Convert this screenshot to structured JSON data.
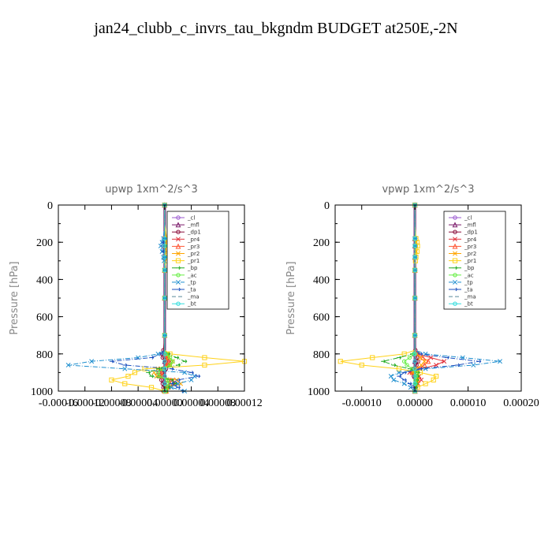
{
  "figure": {
    "title": "jan24_clubb_c_invrs_tau_bkgndm  BUDGET at250E,-2N"
  },
  "legend_entries": [
    {
      "label": "_cl",
      "color": "#9b59d0",
      "marker": "circle",
      "dash": "solid"
    },
    {
      "label": "_mfl",
      "color": "#7b1b6a",
      "marker": "triangle",
      "dash": "solid"
    },
    {
      "label": "_dp1",
      "color": "#8b0f3c",
      "marker": "circle",
      "dash": "solid"
    },
    {
      "label": "_pr4",
      "color": "#e0303a",
      "marker": "cross",
      "dash": "solid"
    },
    {
      "label": "_pr3",
      "color": "#ff5533",
      "marker": "triangle",
      "dash": "solid"
    },
    {
      "label": "_pr2",
      "color": "#ffa500",
      "marker": "cross",
      "dash": "solid"
    },
    {
      "label": "_pr1",
      "color": "#ffd21a",
      "marker": "square",
      "dash": "solid"
    },
    {
      "label": "_bp",
      "color": "#22aa22",
      "marker": "arrow",
      "dash": "dashdot"
    },
    {
      "label": "_ac",
      "color": "#66ee44",
      "marker": "circle",
      "dash": "solid"
    },
    {
      "label": "_tp",
      "color": "#1f8fcf",
      "marker": "cross",
      "dash": "dashdot"
    },
    {
      "label": "_ta",
      "color": "#1a4fbf",
      "marker": "arrow",
      "dash": "dashdot"
    },
    {
      "label": "_ma",
      "color": "#5a8a9a",
      "marker": "none",
      "dash": "dash"
    },
    {
      "label": "_bt",
      "color": "#33dddd",
      "marker": "circle",
      "dash": "solid"
    }
  ],
  "chart_data": [
    {
      "type": "line",
      "title": "upwp   1xm^2/s^3",
      "ylabel": "Pressure [hPa]",
      "xlabel": "",
      "xlim": [
        -0.00016,
        0.00012
      ],
      "ylim": [
        1000,
        0
      ],
      "y_ticks": [
        0,
        200,
        400,
        600,
        800,
        1000
      ],
      "y_tick_labels": [
        "0",
        "200",
        "400",
        "600",
        "800",
        "1000"
      ],
      "x_ticks": [
        -0.00016,
        -0.00012,
        -8e-05,
        -4e-05,
        0.0,
        4e-05,
        8e-05,
        0.00012
      ],
      "x_tick_labels": [
        "-0.00016",
        "-0.00012",
        "-0.00008",
        "-0.00004",
        "0.00000",
        "0.00004",
        "0.00008",
        "0.00012"
      ],
      "legend_position": "top-right",
      "y": [
        0,
        100,
        180,
        200,
        220,
        250,
        280,
        300,
        350,
        400,
        500,
        600,
        700,
        780,
        800,
        820,
        840,
        860,
        880,
        900,
        920,
        940,
        960,
        980,
        1000
      ],
      "series": [
        {
          "name": "_cl",
          "values": [
            0,
            0,
            0,
            0,
            0,
            0,
            0,
            0,
            0,
            0,
            0,
            0,
            0,
            0,
            0,
            0,
            0,
            0,
            0,
            0,
            0,
            0,
            0,
            0,
            0
          ]
        },
        {
          "name": "_mfl",
          "values": [
            0,
            0,
            0,
            0,
            0,
            0,
            0,
            0,
            0,
            0,
            0,
            0,
            0,
            0,
            0,
            0,
            0,
            0,
            0,
            0,
            0,
            0,
            0,
            0,
            0
          ]
        },
        {
          "name": "_dp1",
          "values": [
            0,
            0,
            0,
            0,
            0,
            0,
            0,
            0,
            0,
            0,
            0,
            0,
            0,
            -2e-06,
            -4e-06,
            -3e-06,
            2e-06,
            3e-06,
            2e-06,
            -4e-06,
            -7e-06,
            -5e-06,
            -3e-06,
            -2e-06,
            -2e-06
          ]
        },
        {
          "name": "_pr4",
          "values": [
            0,
            0,
            0,
            0,
            0,
            0,
            0,
            0,
            0,
            0,
            0,
            0,
            0,
            0,
            2e-06,
            4e-06,
            8e-06,
            6e-06,
            -6e-06,
            -1e-05,
            -8e-06,
            1.2e-05,
            1.6e-05,
            4e-06,
            2e-06
          ]
        },
        {
          "name": "_pr3",
          "values": [
            0,
            0,
            0,
            0,
            0,
            0,
            0,
            0,
            0,
            0,
            0,
            0,
            0,
            0,
            1e-06,
            2e-06,
            4e-06,
            3e-06,
            -3e-06,
            -5e-06,
            -4e-06,
            6e-06,
            8e-06,
            2e-06,
            1e-06
          ]
        },
        {
          "name": "_pr2",
          "values": [
            0,
            0,
            1e-06,
            2e-06,
            2e-06,
            2e-06,
            1e-06,
            0,
            0,
            0,
            0,
            0,
            0,
            0,
            4e-06,
            6e-06,
            1.2e-05,
            9e-06,
            -1e-05,
            -1.6e-05,
            -1.2e-05,
            1.8e-05,
            2.4e-05,
            6e-06,
            3e-06
          ]
        },
        {
          "name": "_pr1",
          "values": [
            0,
            0,
            3e-06,
            5e-06,
            6e-06,
            5e-06,
            4e-06,
            2e-06,
            0,
            0,
            0,
            0,
            0,
            0,
            8e-06,
            6e-05,
            0.00012,
            6e-05,
            -3e-05,
            -4.5e-05,
            -5.5e-05,
            -8e-05,
            -6e-05,
            -2e-05,
            0
          ]
        },
        {
          "name": "_bp",
          "values": [
            0,
            0,
            0,
            0,
            0,
            0,
            0,
            0,
            0,
            0,
            0,
            0,
            0,
            0,
            5e-06,
            1.8e-05,
            3e-05,
            2e-05,
            -1e-05,
            -2.5e-05,
            -2e-05,
            1e-05,
            1.5e-05,
            5e-06,
            2e-06
          ]
        },
        {
          "name": "_ac",
          "values": [
            0,
            0,
            0,
            0,
            0,
            0,
            0,
            0,
            0,
            0,
            0,
            0,
            0,
            0,
            2e-06,
            8e-06,
            1.2e-05,
            8e-06,
            -4e-06,
            -1e-05,
            -8e-06,
            4e-06,
            6e-06,
            2e-06,
            1e-06
          ]
        },
        {
          "name": "_tp",
          "values": [
            0,
            0,
            -2e-06,
            -4e-06,
            -6e-06,
            -4e-06,
            -2e-06,
            -1e-06,
            0,
            0,
            0,
            0,
            0,
            0,
            -1e-05,
            -4e-05,
            -0.00011,
            -0.000145,
            -6e-05,
            3e-05,
            4.5e-05,
            4e-05,
            2e-05,
            1e-05,
            3e-05
          ]
        },
        {
          "name": "_ta",
          "values": [
            0,
            0,
            -1e-06,
            -2e-06,
            -3e-06,
            -2e-06,
            -1e-06,
            0,
            0,
            0,
            0,
            0,
            0,
            0,
            -5e-06,
            -2e-05,
            -8e-05,
            -6e-05,
            1e-05,
            4e-05,
            5e-05,
            2e-05,
            1e-05,
            2e-05,
            2.5e-05
          ]
        },
        {
          "name": "_ma",
          "values": [
            0,
            0,
            0,
            0,
            0,
            0,
            0,
            0,
            0,
            0,
            0,
            0,
            0,
            0,
            0,
            0,
            0,
            0,
            0,
            0,
            0,
            0,
            0,
            0,
            0
          ]
        },
        {
          "name": "_bt",
          "values": [
            0,
            0,
            0,
            0,
            0,
            0,
            0,
            0,
            0,
            0,
            0,
            0,
            0,
            0,
            0,
            0,
            0,
            0,
            0,
            0,
            0,
            0,
            0,
            0,
            0
          ]
        }
      ]
    },
    {
      "type": "line",
      "title": "vpwp   1xm^2/s^3",
      "ylabel": "Pressure [hPa]",
      "xlabel": "",
      "xlim": [
        -0.00015,
        0.0002
      ],
      "ylim": [
        1000,
        0
      ],
      "y_ticks": [
        0,
        200,
        400,
        600,
        800,
        1000
      ],
      "y_tick_labels": [
        "0",
        "200",
        "400",
        "600",
        "800",
        "1000"
      ],
      "x_ticks": [
        -0.0001,
        0.0,
        0.0001,
        0.0002
      ],
      "x_tick_labels": [
        "-0.00010",
        "0.00000",
        "0.00010",
        "0.00020"
      ],
      "legend_position": "top-right",
      "y": [
        0,
        100,
        180,
        200,
        220,
        250,
        280,
        300,
        350,
        400,
        500,
        600,
        700,
        780,
        800,
        820,
        840,
        860,
        880,
        900,
        920,
        940,
        960,
        980,
        1000
      ],
      "series": [
        {
          "name": "_cl",
          "values": [
            0,
            0,
            0,
            0,
            0,
            0,
            0,
            0,
            0,
            0,
            0,
            0,
            0,
            0,
            0,
            0,
            0,
            0,
            0,
            0,
            0,
            0,
            0,
            0,
            0
          ]
        },
        {
          "name": "_mfl",
          "values": [
            0,
            0,
            0,
            0,
            0,
            0,
            0,
            0,
            0,
            0,
            0,
            0,
            0,
            0,
            0,
            0,
            0,
            0,
            0,
            0,
            0,
            0,
            0,
            0,
            0
          ]
        },
        {
          "name": "_dp1",
          "values": [
            0,
            0,
            0,
            0,
            0,
            0,
            0,
            0,
            0,
            0,
            0,
            0,
            0,
            1e-06,
            2e-06,
            4e-06,
            6e-06,
            3e-06,
            -2e-06,
            -3e-06,
            -2e-06,
            0,
            1e-06,
            1e-06,
            0
          ]
        },
        {
          "name": "_pr4",
          "values": [
            0,
            0,
            0,
            0,
            0,
            0,
            0,
            0,
            0,
            0,
            0,
            0,
            0,
            0,
            5e-06,
            3e-05,
            5.5e-05,
            4e-05,
            1e-05,
            -1e-05,
            8e-06,
            1.2e-05,
            6e-06,
            2e-06,
            0
          ]
        },
        {
          "name": "_pr3",
          "values": [
            0,
            0,
            0,
            0,
            0,
            0,
            0,
            0,
            0,
            0,
            0,
            0,
            0,
            0,
            3e-06,
            1.5e-05,
            2.5e-05,
            1.8e-05,
            4e-06,
            -5e-06,
            4e-06,
            6e-06,
            3e-06,
            1e-06,
            0
          ]
        },
        {
          "name": "_pr2",
          "values": [
            0,
            0,
            1e-06,
            2e-06,
            2e-06,
            2e-06,
            1e-06,
            0,
            0,
            0,
            0,
            0,
            0,
            0,
            3e-06,
            1e-05,
            1.8e-05,
            1.2e-05,
            3e-06,
            -4e-06,
            3e-06,
            5e-06,
            3e-06,
            1e-06,
            0
          ]
        },
        {
          "name": "_pr1",
          "values": [
            0,
            0,
            2e-06,
            4e-06,
            5e-06,
            4e-06,
            2e-06,
            1e-06,
            0,
            0,
            0,
            0,
            0,
            0,
            -2e-05,
            -8e-05,
            -0.00014,
            -0.0001,
            -3e-05,
            1e-05,
            4e-05,
            3.5e-05,
            2e-05,
            5e-06,
            0
          ]
        },
        {
          "name": "_bp",
          "values": [
            0,
            0,
            0,
            0,
            0,
            0,
            0,
            0,
            0,
            0,
            0,
            0,
            0,
            0,
            -5e-06,
            -3e-05,
            -6e-05,
            -4e-05,
            -1e-05,
            5e-06,
            4e-06,
            3e-06,
            2e-06,
            1e-06,
            0
          ]
        },
        {
          "name": "_ac",
          "values": [
            0,
            0,
            0,
            0,
            0,
            0,
            0,
            0,
            0,
            0,
            0,
            0,
            0,
            0,
            -2e-06,
            -1e-05,
            -2e-05,
            -1.5e-05,
            -5e-06,
            2e-06,
            2e-06,
            1e-06,
            1e-06,
            0,
            0
          ]
        },
        {
          "name": "_tp",
          "values": [
            0,
            0,
            0,
            0,
            0,
            0,
            0,
            0,
            0,
            0,
            0,
            0,
            0,
            0,
            2e-05,
            9e-05,
            0.00016,
            0.00011,
            2e-05,
            -3e-05,
            -4.5e-05,
            -4e-05,
            -2e-05,
            -8e-06,
            0
          ]
        },
        {
          "name": "_ta",
          "values": [
            0,
            0,
            0,
            0,
            0,
            0,
            0,
            0,
            0,
            0,
            0,
            0,
            0,
            0,
            1e-05,
            6e-05,
            0.00012,
            8e-05,
            1e-05,
            -2e-05,
            -3e-05,
            -2e-05,
            -1e-05,
            -4e-06,
            0
          ]
        },
        {
          "name": "_ma",
          "values": [
            0,
            0,
            0,
            0,
            0,
            0,
            0,
            0,
            0,
            0,
            0,
            0,
            0,
            0,
            0,
            0,
            0,
            0,
            0,
            0,
            0,
            0,
            0,
            0,
            0
          ]
        },
        {
          "name": "_bt",
          "values": [
            0,
            0,
            0,
            0,
            0,
            0,
            0,
            0,
            0,
            0,
            0,
            0,
            0,
            0,
            0,
            0,
            0,
            0,
            0,
            0,
            0,
            0,
            0,
            0,
            0
          ]
        }
      ]
    }
  ]
}
